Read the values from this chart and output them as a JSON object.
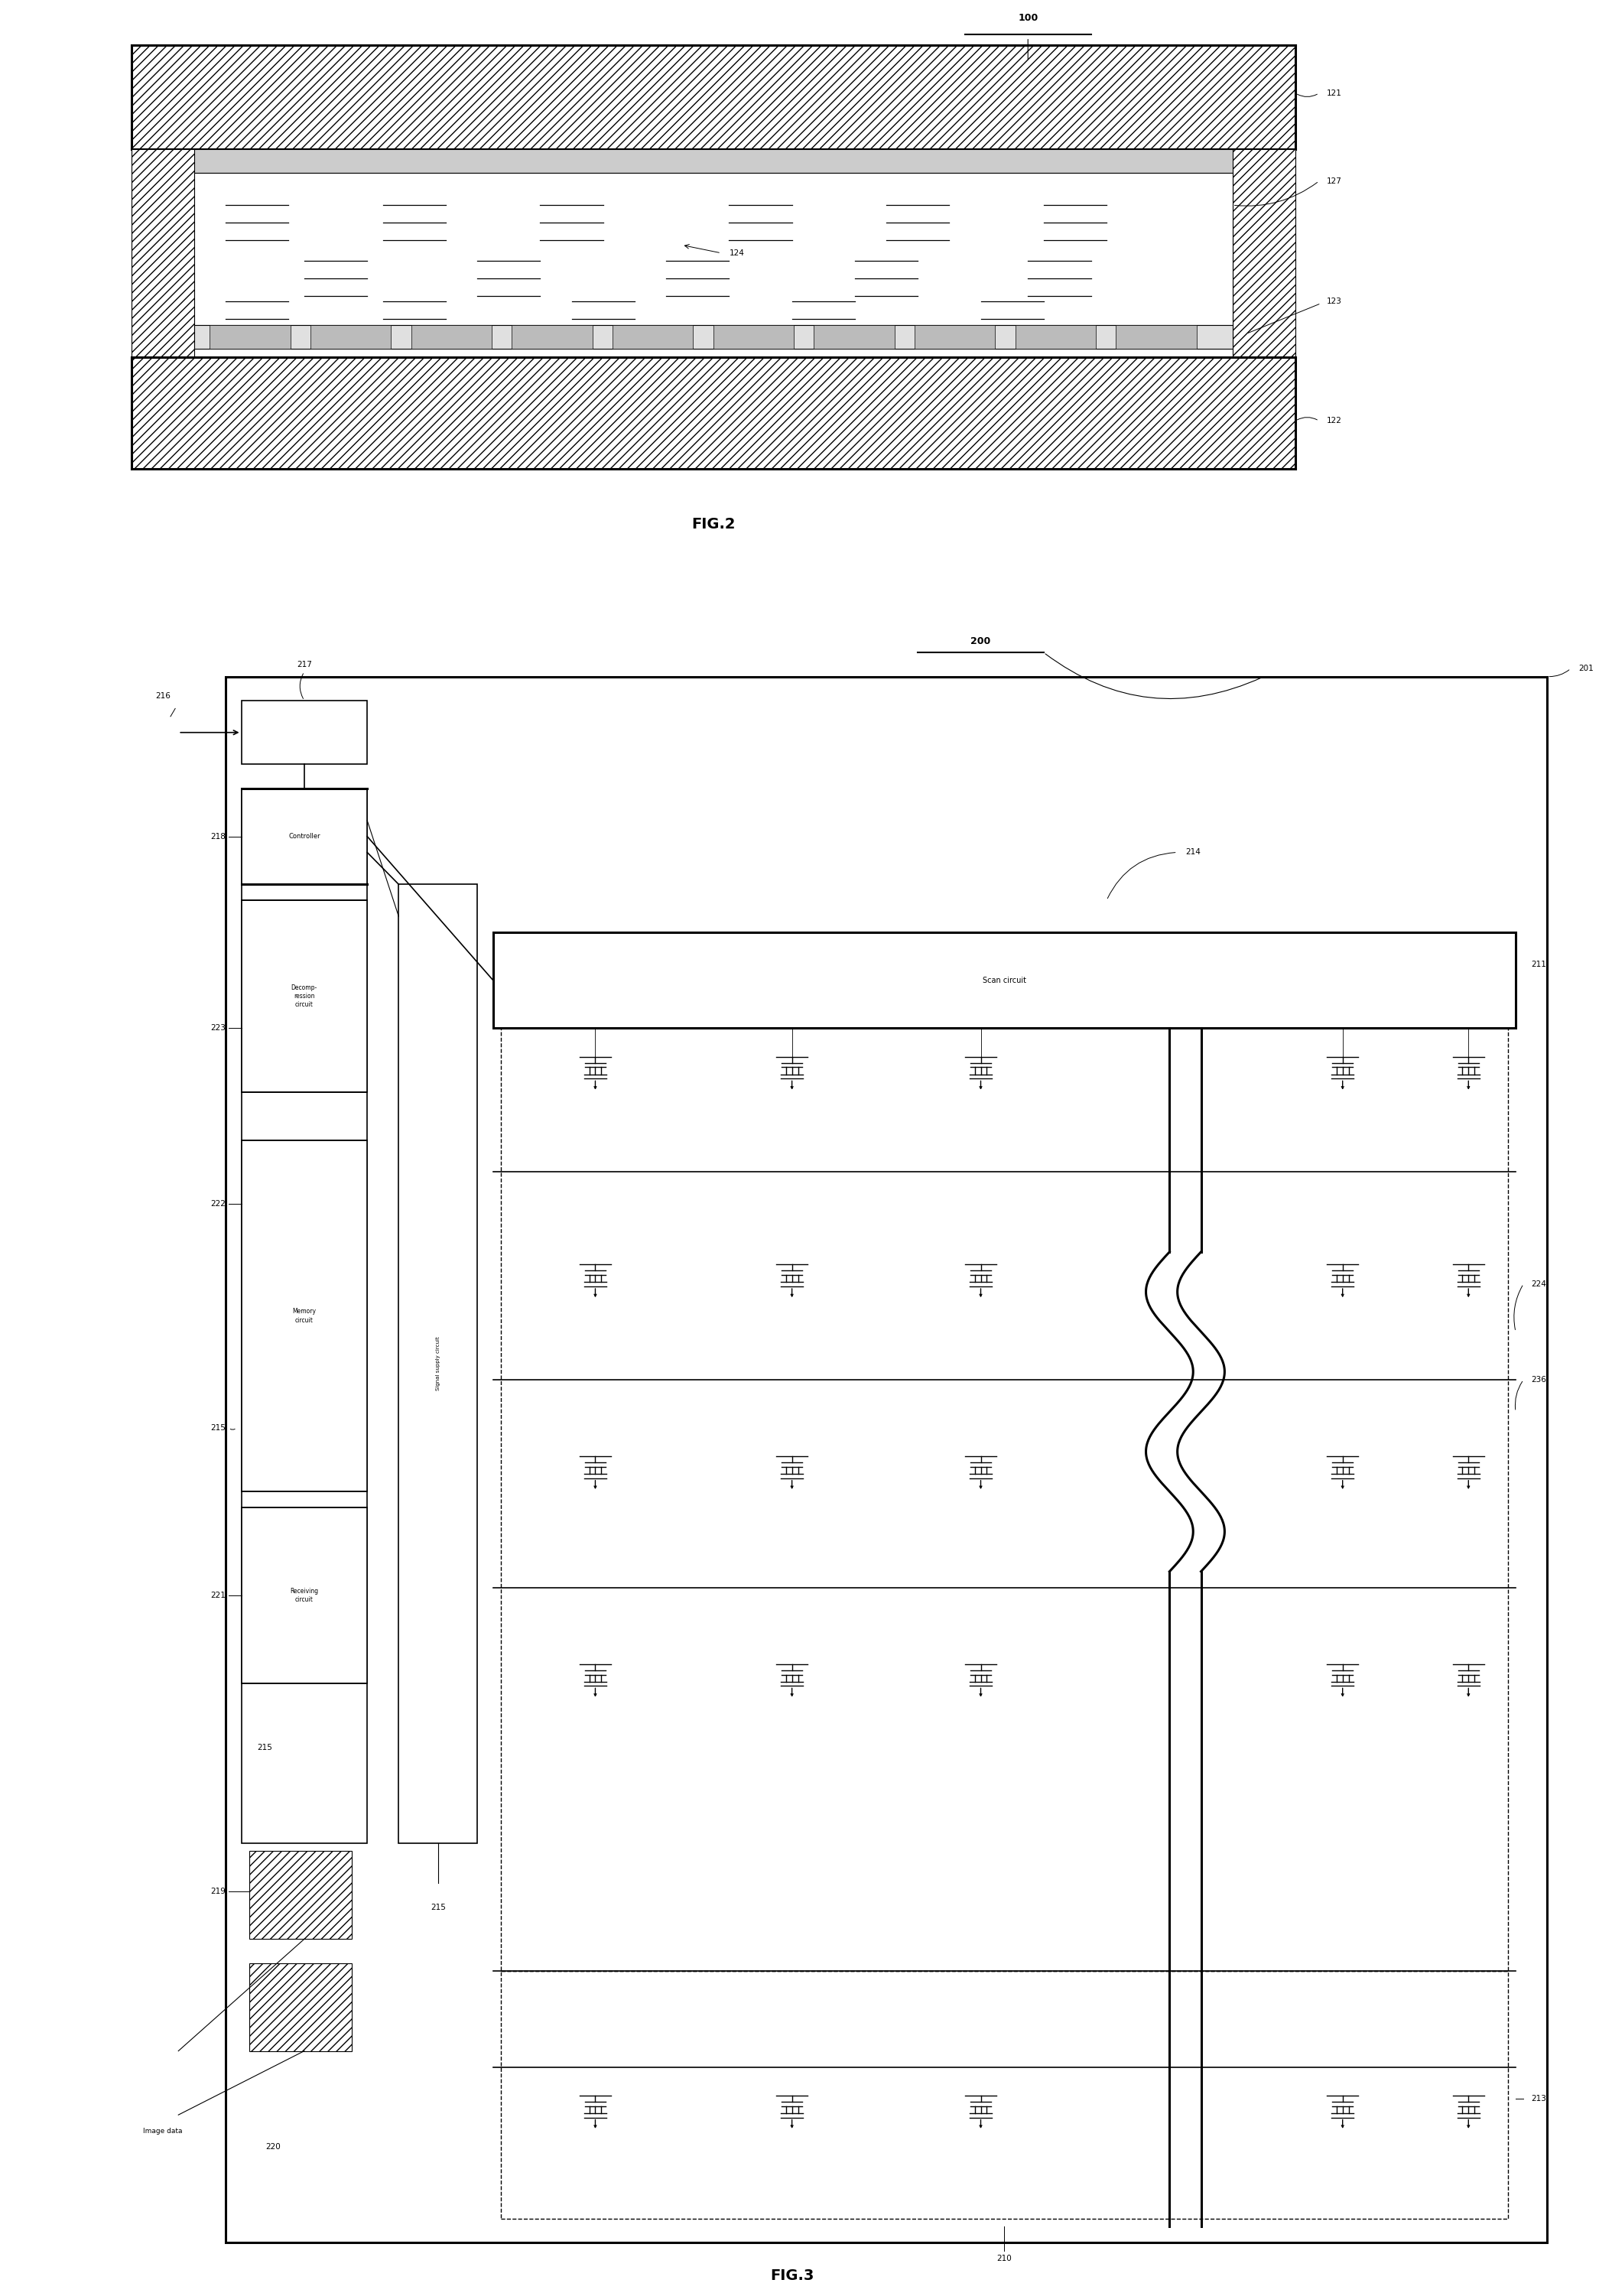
{
  "fig_width": 20.91,
  "fig_height": 30.02,
  "bg_color": "#ffffff",
  "line_color": "#000000",
  "fig2_label": "FIG.2",
  "fig3_label": "FIG.3",
  "label_100": "100",
  "label_121": "121",
  "label_122": "122",
  "label_123": "123",
  "label_124": "124",
  "label_127": "127",
  "label_200": "200",
  "label_201": "201",
  "label_210": "210",
  "label_211": "211",
  "label_213": "213",
  "label_214": "214",
  "label_215a": "215",
  "label_215b": "215",
  "label_216": "216",
  "label_217": "217",
  "label_218": "218",
  "label_219": "219",
  "label_220": "220",
  "label_221": "221",
  "label_222": "222",
  "label_223": "223",
  "label_224": "224",
  "label_236": "236",
  "scan_circuit_text": "Scan circuit",
  "signal_supply_text": "Signal supply circuit",
  "controller_text": "Controller",
  "decomp_text": "Decomp-\nression\ncircuit",
  "memory_text": "Memory\ncircuit",
  "receiving_text": "Receiving\ncircuit",
  "image_data_text": "Image data"
}
